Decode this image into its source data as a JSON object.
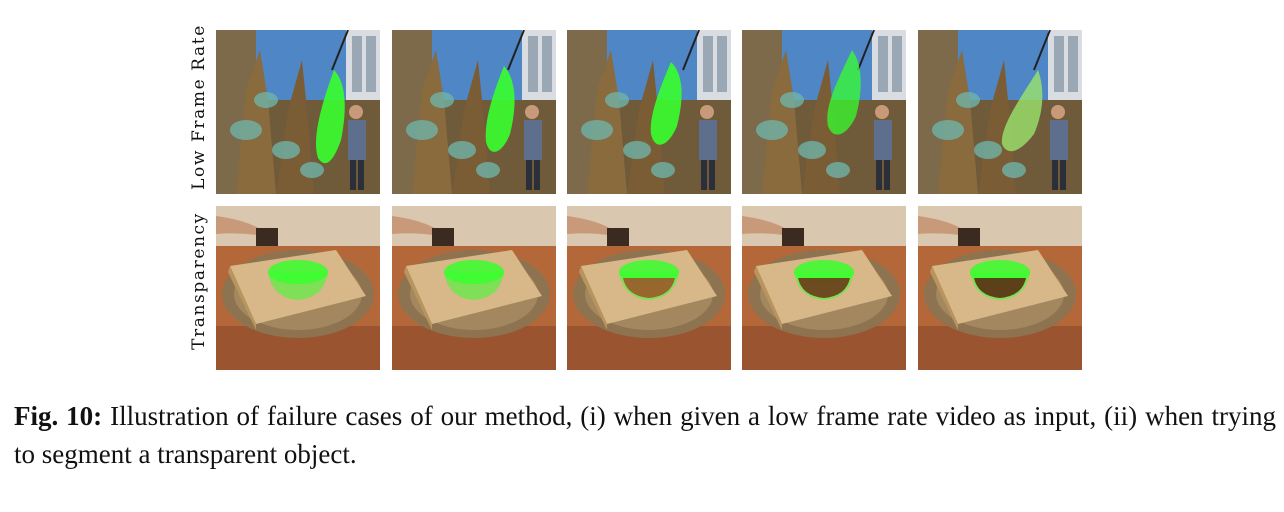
{
  "figure": {
    "rows": [
      {
        "label": "Low Frame Rate",
        "scene": "painting",
        "frames": 5
      },
      {
        "label": "Transparency",
        "scene": "bowl",
        "frames": 5
      }
    ],
    "mask_color": "#37ff2e",
    "caption": {
      "number": "Fig. 10:",
      "text": "Illustration of failure cases of our method, (i) when given a low frame rate video as input, (ii) when trying to segment a transparent object."
    }
  }
}
